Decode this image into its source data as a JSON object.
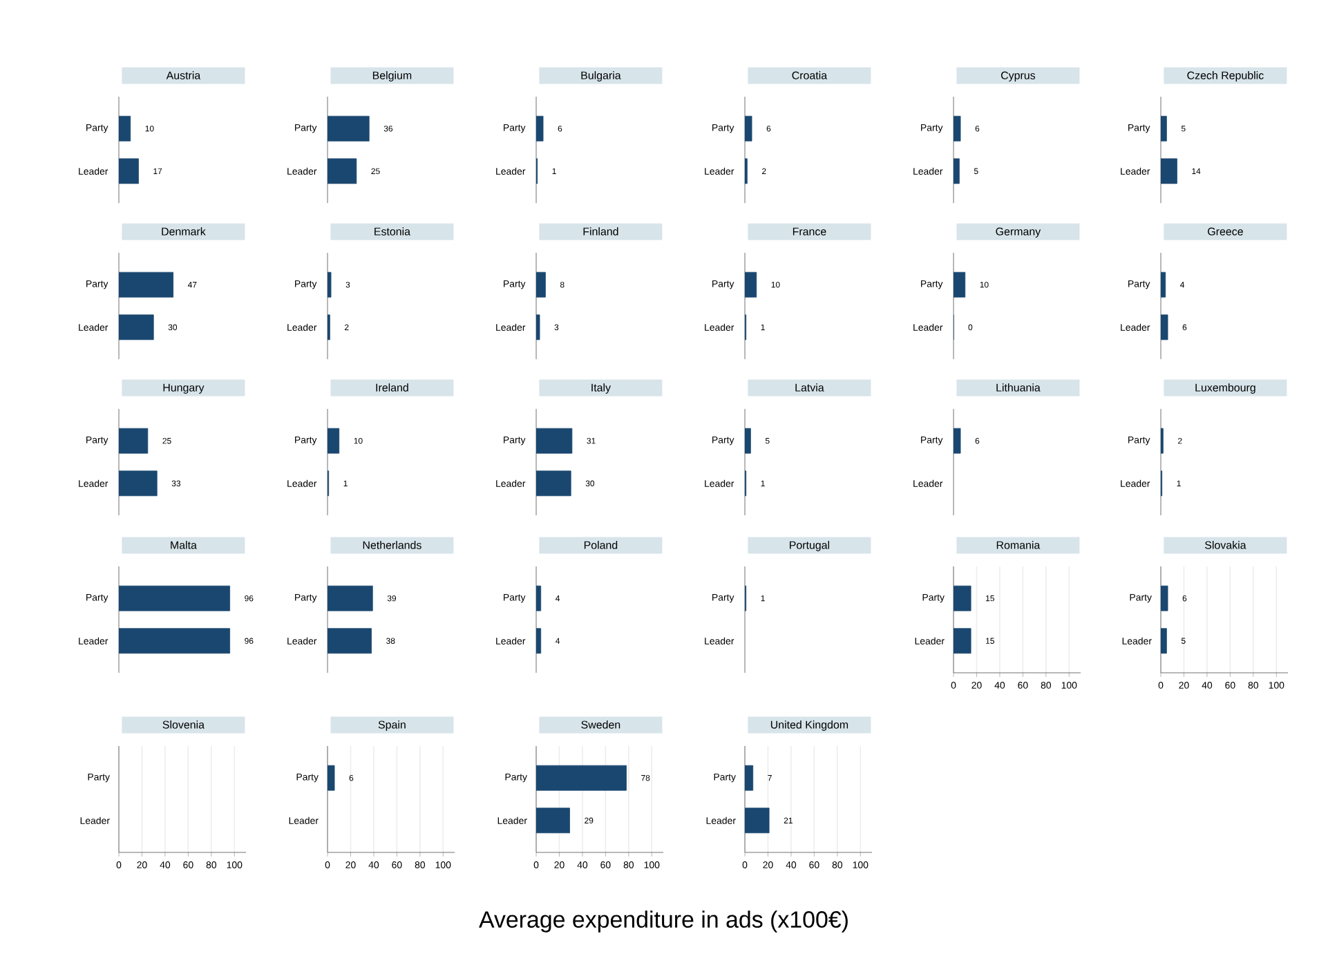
{
  "chart_data": [
    {
      "type": "bar",
      "orientation": "horizontal",
      "title": "Austria",
      "categories": [
        "Party",
        "Leader"
      ],
      "values": [
        10,
        17
      ],
      "color": "#1a476f",
      "xlim": [
        0,
        100
      ],
      "xticks": [
        0,
        20,
        40,
        60,
        80,
        100
      ],
      "grid": "x",
      "data_labels": true,
      "tick_labels": "y"
    },
    {
      "type": "bar",
      "orientation": "horizontal",
      "title": "Belgium",
      "categories": [
        "Party",
        "Leader"
      ],
      "values": [
        36,
        25
      ],
      "color": "#1a476f",
      "xlim": [
        0,
        100
      ],
      "xticks": [
        0,
        20,
        40,
        60,
        80,
        100
      ],
      "grid": "x",
      "data_labels": true,
      "tick_labels": "y"
    },
    {
      "type": "bar",
      "orientation": "horizontal",
      "title": "Bulgaria",
      "categories": [
        "Party",
        "Leader"
      ],
      "values": [
        6,
        1
      ],
      "color": "#1a476f",
      "xlim": [
        0,
        100
      ],
      "xticks": [
        0,
        20,
        40,
        60,
        80,
        100
      ],
      "grid": "x",
      "data_labels": true,
      "tick_labels": "y"
    },
    {
      "type": "bar",
      "orientation": "horizontal",
      "title": "Croatia",
      "categories": [
        "Party",
        "Leader"
      ],
      "values": [
        6,
        2
      ],
      "color": "#1a476f",
      "xlim": [
        0,
        100
      ],
      "xticks": [
        0,
        20,
        40,
        60,
        80,
        100
      ],
      "grid": "x",
      "data_labels": true,
      "tick_labels": "y"
    },
    {
      "type": "bar",
      "orientation": "horizontal",
      "title": "Cyprus",
      "categories": [
        "Party",
        "Leader"
      ],
      "values": [
        6,
        5
      ],
      "color": "#1a476f",
      "xlim": [
        0,
        100
      ],
      "xticks": [
        0,
        20,
        40,
        60,
        80,
        100
      ],
      "grid": "x",
      "data_labels": true,
      "tick_labels": "y"
    },
    {
      "type": "bar",
      "orientation": "horizontal",
      "title": "Czech Republic",
      "categories": [
        "Party",
        "Leader"
      ],
      "values": [
        5,
        14
      ],
      "color": "#1a476f",
      "xlim": [
        0,
        100
      ],
      "xticks": [
        0,
        20,
        40,
        60,
        80,
        100
      ],
      "grid": "x",
      "data_labels": true,
      "tick_labels": "y"
    },
    {
      "type": "bar",
      "orientation": "horizontal",
      "title": "Denmark",
      "categories": [
        "Party",
        "Leader"
      ],
      "values": [
        47,
        30
      ],
      "color": "#1a476f",
      "xlim": [
        0,
        100
      ],
      "xticks": [
        0,
        20,
        40,
        60,
        80,
        100
      ],
      "grid": "x",
      "data_labels": true,
      "tick_labels": "y"
    },
    {
      "type": "bar",
      "orientation": "horizontal",
      "title": "Estonia",
      "categories": [
        "Party",
        "Leader"
      ],
      "values": [
        3,
        2
      ],
      "color": "#1a476f",
      "xlim": [
        0,
        100
      ],
      "xticks": [
        0,
        20,
        40,
        60,
        80,
        100
      ],
      "grid": "x",
      "data_labels": true,
      "tick_labels": "y"
    },
    {
      "type": "bar",
      "orientation": "horizontal",
      "title": "Finland",
      "categories": [
        "Party",
        "Leader"
      ],
      "values": [
        8,
        3
      ],
      "color": "#1a476f",
      "xlim": [
        0,
        100
      ],
      "xticks": [
        0,
        20,
        40,
        60,
        80,
        100
      ],
      "grid": "x",
      "data_labels": true,
      "tick_labels": "y"
    },
    {
      "type": "bar",
      "orientation": "horizontal",
      "title": "France",
      "categories": [
        "Party",
        "Leader"
      ],
      "values": [
        10,
        1
      ],
      "color": "#1a476f",
      "xlim": [
        0,
        100
      ],
      "xticks": [
        0,
        20,
        40,
        60,
        80,
        100
      ],
      "grid": "x",
      "data_labels": true,
      "tick_labels": "y"
    },
    {
      "type": "bar",
      "orientation": "horizontal",
      "title": "Germany",
      "categories": [
        "Party",
        "Leader"
      ],
      "values": [
        10,
        0
      ],
      "color": "#1a476f",
      "xlim": [
        0,
        100
      ],
      "xticks": [
        0,
        20,
        40,
        60,
        80,
        100
      ],
      "grid": "x",
      "data_labels": true,
      "tick_labels": "y"
    },
    {
      "type": "bar",
      "orientation": "horizontal",
      "title": "Greece",
      "categories": [
        "Party",
        "Leader"
      ],
      "values": [
        4,
        6
      ],
      "color": "#1a476f",
      "xlim": [
        0,
        100
      ],
      "xticks": [
        0,
        20,
        40,
        60,
        80,
        100
      ],
      "grid": "x",
      "data_labels": true,
      "tick_labels": "y"
    },
    {
      "type": "bar",
      "orientation": "horizontal",
      "title": "Hungary",
      "categories": [
        "Party",
        "Leader"
      ],
      "values": [
        25,
        33
      ],
      "color": "#1a476f",
      "xlim": [
        0,
        100
      ],
      "xticks": [
        0,
        20,
        40,
        60,
        80,
        100
      ],
      "grid": "x",
      "data_labels": true,
      "tick_labels": "y"
    },
    {
      "type": "bar",
      "orientation": "horizontal",
      "title": "Ireland",
      "categories": [
        "Party",
        "Leader"
      ],
      "values": [
        10,
        1
      ],
      "color": "#1a476f",
      "xlim": [
        0,
        100
      ],
      "xticks": [
        0,
        20,
        40,
        60,
        80,
        100
      ],
      "grid": "x",
      "data_labels": true,
      "tick_labels": "y"
    },
    {
      "type": "bar",
      "orientation": "horizontal",
      "title": "Italy",
      "categories": [
        "Party",
        "Leader"
      ],
      "values": [
        31,
        30
      ],
      "color": "#1a476f",
      "xlim": [
        0,
        100
      ],
      "xticks": [
        0,
        20,
        40,
        60,
        80,
        100
      ],
      "grid": "x",
      "data_labels": true,
      "tick_labels": "y"
    },
    {
      "type": "bar",
      "orientation": "horizontal",
      "title": "Latvia",
      "categories": [
        "Party",
        "Leader"
      ],
      "values": [
        5,
        1
      ],
      "color": "#1a476f",
      "xlim": [
        0,
        100
      ],
      "xticks": [
        0,
        20,
        40,
        60,
        80,
        100
      ],
      "grid": "x",
      "data_labels": true,
      "tick_labels": "y"
    },
    {
      "type": "bar",
      "orientation": "horizontal",
      "title": "Lithuania",
      "categories": [
        "Party",
        "Leader"
      ],
      "values": [
        6,
        null
      ],
      "color": "#1a476f",
      "xlim": [
        0,
        100
      ],
      "xticks": [
        0,
        20,
        40,
        60,
        80,
        100
      ],
      "grid": "x",
      "data_labels": true,
      "tick_labels": "y"
    },
    {
      "type": "bar",
      "orientation": "horizontal",
      "title": "Luxembourg",
      "categories": [
        "Party",
        "Leader"
      ],
      "values": [
        2,
        1
      ],
      "color": "#1a476f",
      "xlim": [
        0,
        100
      ],
      "xticks": [
        0,
        20,
        40,
        60,
        80,
        100
      ],
      "grid": "x",
      "data_labels": true,
      "tick_labels": "y"
    },
    {
      "type": "bar",
      "orientation": "horizontal",
      "title": "Malta",
      "categories": [
        "Party",
        "Leader"
      ],
      "values": [
        96,
        96
      ],
      "color": "#1a476f",
      "xlim": [
        0,
        100
      ],
      "xticks": [
        0,
        20,
        40,
        60,
        80,
        100
      ],
      "grid": "x",
      "data_labels": true,
      "tick_labels": "y"
    },
    {
      "type": "bar",
      "orientation": "horizontal",
      "title": "Netherlands",
      "categories": [
        "Party",
        "Leader"
      ],
      "values": [
        39,
        38
      ],
      "color": "#1a476f",
      "xlim": [
        0,
        100
      ],
      "xticks": [
        0,
        20,
        40,
        60,
        80,
        100
      ],
      "grid": "x",
      "data_labels": true,
      "tick_labels": "y"
    },
    {
      "type": "bar",
      "orientation": "horizontal",
      "title": "Poland",
      "categories": [
        "Party",
        "Leader"
      ],
      "values": [
        4,
        4
      ],
      "color": "#1a476f",
      "xlim": [
        0,
        100
      ],
      "xticks": [
        0,
        20,
        40,
        60,
        80,
        100
      ],
      "grid": "x",
      "data_labels": true,
      "tick_labels": "y"
    },
    {
      "type": "bar",
      "orientation": "horizontal",
      "title": "Portugal",
      "categories": [
        "Party",
        "Leader"
      ],
      "values": [
        1,
        null
      ],
      "color": "#1a476f",
      "xlim": [
        0,
        100
      ],
      "xticks": [
        0,
        20,
        40,
        60,
        80,
        100
      ],
      "grid": "x",
      "data_labels": true,
      "tick_labels": "y"
    },
    {
      "type": "bar",
      "orientation": "horizontal",
      "title": "Romania",
      "categories": [
        "Party",
        "Leader"
      ],
      "values": [
        15,
        15
      ],
      "color": "#1a476f",
      "xlim": [
        0,
        110
      ],
      "xticks": [
        0,
        20,
        40,
        60,
        80,
        100
      ],
      "grid": "x",
      "data_labels": true
    },
    {
      "type": "bar",
      "orientation": "horizontal",
      "title": "Slovakia",
      "categories": [
        "Party",
        "Leader"
      ],
      "values": [
        6,
        5
      ],
      "color": "#1a476f",
      "xlim": [
        0,
        110
      ],
      "xticks": [
        0,
        20,
        40,
        60,
        80,
        100
      ],
      "grid": "x",
      "data_labels": true
    },
    {
      "type": "bar",
      "orientation": "horizontal",
      "title": "Slovenia",
      "categories": [
        "Party",
        "Leader"
      ],
      "values": [
        null,
        null
      ],
      "color": "#1a476f",
      "xlim": [
        0,
        110
      ],
      "xticks": [
        0,
        20,
        40,
        60,
        80,
        100
      ],
      "grid": "x",
      "data_labels": true
    },
    {
      "type": "bar",
      "orientation": "horizontal",
      "title": "Spain",
      "categories": [
        "Party",
        "Leader"
      ],
      "values": [
        6,
        null
      ],
      "color": "#1a476f",
      "xlim": [
        0,
        110
      ],
      "xticks": [
        0,
        20,
        40,
        60,
        80,
        100
      ],
      "grid": "x",
      "data_labels": true
    },
    {
      "type": "bar",
      "orientation": "horizontal",
      "title": "Sweden",
      "categories": [
        "Party",
        "Leader"
      ],
      "values": [
        78,
        29
      ],
      "color": "#1a476f",
      "xlim": [
        0,
        110
      ],
      "xticks": [
        0,
        20,
        40,
        60,
        80,
        100
      ],
      "grid": "x",
      "data_labels": true
    },
    {
      "type": "bar",
      "orientation": "horizontal",
      "title": "United Kingdom",
      "categories": [
        "Party",
        "Leader"
      ],
      "values": [
        7,
        21
      ],
      "color": "#1a476f",
      "xlim": [
        0,
        110
      ],
      "xticks": [
        0,
        20,
        40,
        60,
        80,
        100
      ],
      "grid": "x",
      "data_labels": true
    },
    {
      "type": "other",
      "annotations": [
        "Average expenditure in ads (x100€)"
      ]
    }
  ]
}
